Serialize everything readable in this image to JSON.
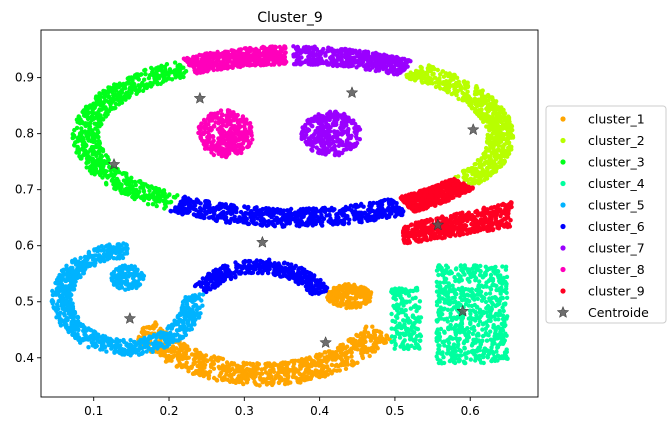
{
  "chart_data": {
    "type": "scatter",
    "title": "Cluster_9",
    "xlabel": "",
    "ylabel": "",
    "xlim": [
      0.03,
      0.69
    ],
    "ylim": [
      0.33,
      0.985
    ],
    "xticks": [
      0.1,
      0.2,
      0.3,
      0.4,
      0.5,
      0.6
    ],
    "yticks": [
      0.4,
      0.5,
      0.6,
      0.7,
      0.8,
      0.9
    ],
    "xtick_labels": [
      "0.1",
      "0.2",
      "0.3",
      "0.4",
      "0.5",
      "0.6"
    ],
    "ytick_labels": [
      "0.4",
      "0.5",
      "0.6",
      "0.7",
      "0.8",
      "0.9"
    ],
    "grid": false,
    "legend_position": "center right, outside plot",
    "series": [
      {
        "name": "cluster_1",
        "color": "#ffa500",
        "centroid": [
          0.408,
          0.427
        ],
        "regions": [
          {
            "kind": "arc",
            "cx": 0.325,
            "cy": 0.565,
            "r": 0.195,
            "a0": 215,
            "a1": 323,
            "w": 0.02,
            "n": 850
          },
          {
            "kind": "blob",
            "cx": 0.44,
            "cy": 0.51,
            "rx": 0.03,
            "ry": 0.022,
            "n": 200
          }
        ]
      },
      {
        "name": "cluster_2",
        "color": "#b8ff00",
        "centroid": [
          0.604,
          0.807
        ],
        "regions": [
          {
            "kind": "ring",
            "cx": 0.365,
            "cy": 0.795,
            "rx": 0.275,
            "ry": 0.145,
            "a0": -34,
            "a1": 55,
            "w": 0.018,
            "n": 600
          }
        ]
      },
      {
        "name": "cluster_3",
        "color": "#00ff1a",
        "centroid": [
          0.127,
          0.745
        ],
        "regions": [
          {
            "kind": "ring",
            "cx": 0.365,
            "cy": 0.795,
            "rx": 0.275,
            "ry": 0.145,
            "a0": 122,
            "a1": 234,
            "w": 0.018,
            "n": 700
          }
        ]
      },
      {
        "name": "cluster_4",
        "color": "#00ff9f",
        "centroid": [
          0.59,
          0.483
        ],
        "regions": [
          {
            "kind": "box",
            "x0": 0.555,
            "x1": 0.65,
            "y0": 0.39,
            "y1": 0.565,
            "n": 650
          },
          {
            "kind": "box",
            "x0": 0.495,
            "x1": 0.535,
            "y0": 0.415,
            "y1": 0.525,
            "n": 170
          }
        ]
      },
      {
        "name": "cluster_5",
        "color": "#00b3ff",
        "centroid": [
          0.148,
          0.47
        ],
        "regions": [
          {
            "kind": "arc",
            "cx": 0.145,
            "cy": 0.505,
            "r": 0.087,
            "a0": 90,
            "a1": 365,
            "w": 0.014,
            "n": 800
          },
          {
            "kind": "blob",
            "cx": 0.145,
            "cy": 0.543,
            "rx": 0.022,
            "ry": 0.022,
            "n": 120
          }
        ]
      },
      {
        "name": "cluster_6",
        "color": "#0000ff",
        "centroid": [
          0.324,
          0.606
        ],
        "regions": [
          {
            "kind": "ring",
            "cx": 0.365,
            "cy": 0.795,
            "rx": 0.275,
            "ry": 0.145,
            "a0": 236,
            "a1": 301,
            "w": 0.018,
            "n": 650
          },
          {
            "kind": "arc",
            "cx": 0.32,
            "cy": 0.468,
            "r": 0.095,
            "a0": 30,
            "a1": 145,
            "w": 0.013,
            "n": 400
          }
        ]
      },
      {
        "name": "cluster_7",
        "color": "#9a00ff",
        "centroid": [
          0.443,
          0.873
        ],
        "regions": [
          {
            "kind": "ring",
            "cx": 0.365,
            "cy": 0.795,
            "rx": 0.275,
            "ry": 0.145,
            "a0": 57,
            "a1": 90,
            "w": 0.018,
            "n": 450
          },
          {
            "kind": "blob",
            "cx": 0.415,
            "cy": 0.8,
            "rx": 0.04,
            "ry": 0.04,
            "n": 320
          }
        ]
      },
      {
        "name": "cluster_8",
        "color": "#ff00bb",
        "centroid": [
          0.241,
          0.863
        ],
        "regions": [
          {
            "kind": "ring",
            "cx": 0.365,
            "cy": 0.795,
            "rx": 0.275,
            "ry": 0.145,
            "a0": 92,
            "a1": 120,
            "w": 0.018,
            "n": 500
          },
          {
            "kind": "blob",
            "cx": 0.275,
            "cy": 0.8,
            "rx": 0.037,
            "ry": 0.042,
            "n": 320
          }
        ]
      },
      {
        "name": "cluster_9",
        "color": "#ff0022",
        "centroid": [
          0.557,
          0.637
        ],
        "regions": [
          {
            "kind": "ring",
            "cx": 0.365,
            "cy": 0.795,
            "rx": 0.275,
            "ry": 0.145,
            "a0": 303,
            "a1": 325,
            "w": 0.018,
            "n": 550
          },
          {
            "kind": "band",
            "x0": 0.51,
            "x1": 0.655,
            "ya": [
              0.602,
              0.61
            ],
            "yb": [
              0.633,
              0.61
            ],
            "n": 500
          }
        ]
      }
    ],
    "centroid_label": "Centroide",
    "centroid_color": "#555555"
  }
}
